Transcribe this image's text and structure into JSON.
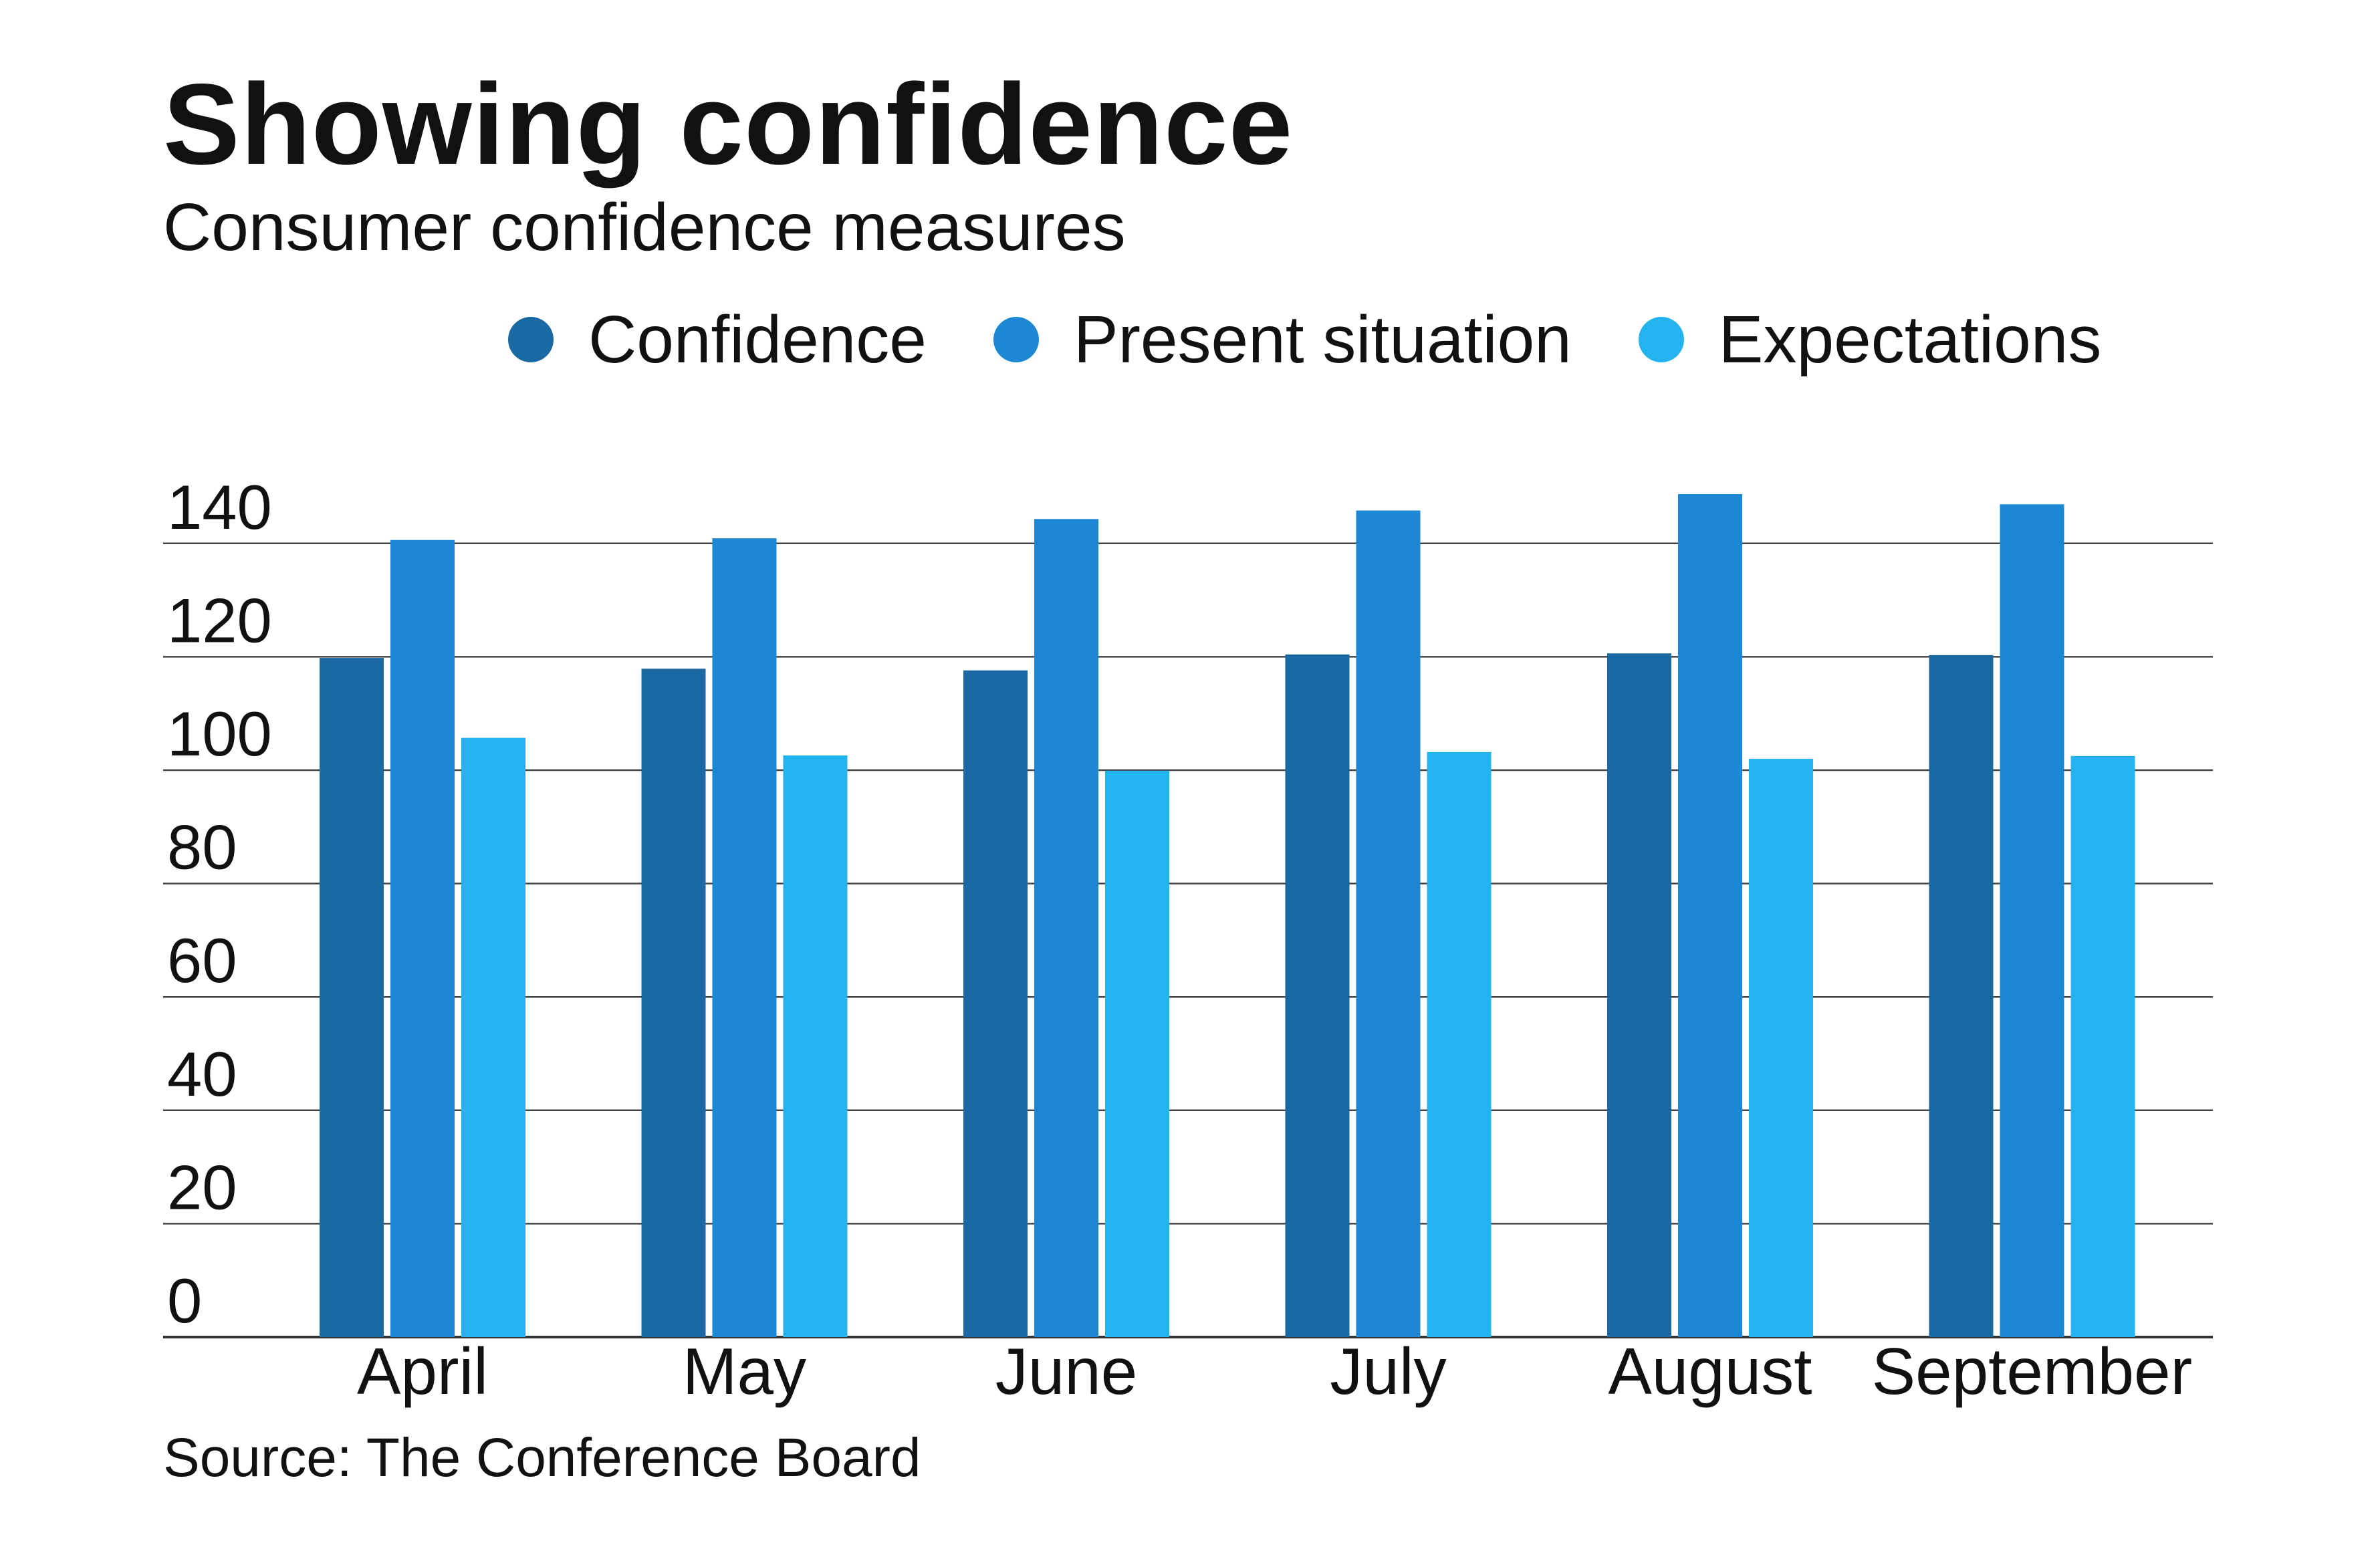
{
  "title": "Showing confidence",
  "subtitle": "Consumer confidence measures",
  "source": "Source: The Conference Board",
  "chart_data": {
    "type": "bar",
    "categories": [
      "April",
      "May",
      "June",
      "July",
      "August",
      "September"
    ],
    "series": [
      {
        "name": "Confidence",
        "color": "#1b69a3",
        "values": [
          119.8,
          117.9,
          117.6,
          120.4,
          120.6,
          120.3
        ]
      },
      {
        "name": "Present situation",
        "color": "#1c87d3",
        "values": [
          140.6,
          140.9,
          144.3,
          145.8,
          148.7,
          146.9
        ]
      },
      {
        "name": "Expectations",
        "color": "#23b4f0",
        "values": [
          105.7,
          102.6,
          99.9,
          103.2,
          102.0,
          102.5
        ]
      }
    ],
    "y_ticks": [
      "0",
      "20",
      "40",
      "60",
      "80",
      "100",
      "120",
      "140"
    ],
    "ylim": [
      0,
      160
    ],
    "xlabel": "",
    "ylabel": "",
    "grid": true,
    "legend_position": "top-right"
  }
}
